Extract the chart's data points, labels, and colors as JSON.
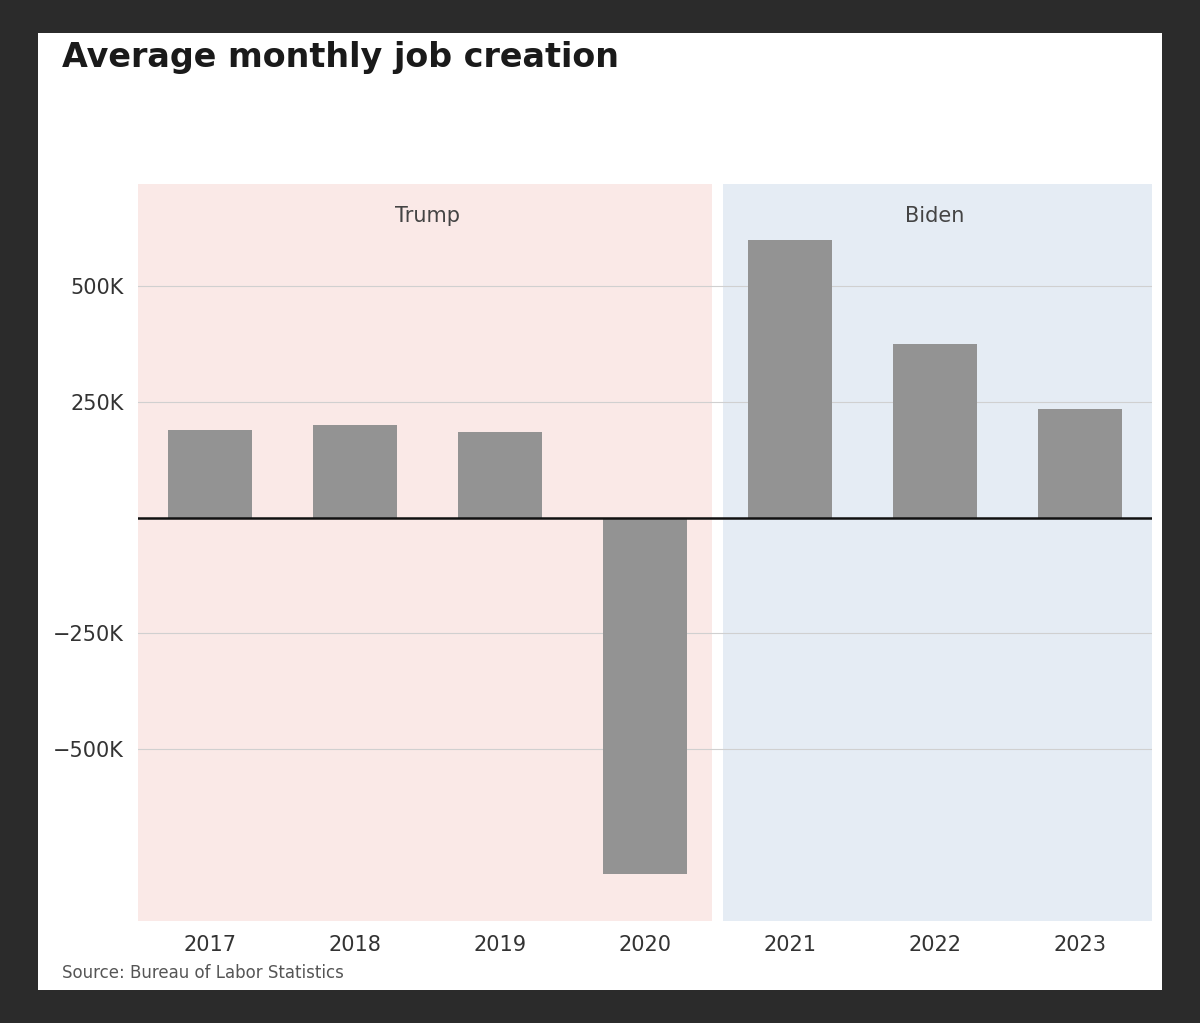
{
  "title": "Average monthly job creation",
  "source": "Source: Bureau of Labor Statistics",
  "years": [
    2017,
    2018,
    2019,
    2020,
    2021,
    2022,
    2023
  ],
  "values": [
    190000,
    200000,
    185000,
    -770000,
    600000,
    375000,
    235000
  ],
  "bar_color": "#939393",
  "trump_bg": "#fae9e7",
  "biden_bg": "#e5ecf4",
  "trump_label": "Trump",
  "biden_label": "Biden",
  "ylim": [
    -870000,
    720000
  ],
  "yticks": [
    -500000,
    -250000,
    0,
    250000,
    500000
  ],
  "ytick_labels": [
    "−500K",
    "−250K",
    "",
    "250K",
    "500K"
  ],
  "chart_bg": "#ffffff",
  "outer_bg": "#2b2b2b",
  "grid_color": "#d0d0d0",
  "zero_line_color": "#111111",
  "title_fontsize": 24,
  "tick_fontsize": 15,
  "president_fontsize": 15,
  "source_fontsize": 12,
  "bar_width": 0.58
}
